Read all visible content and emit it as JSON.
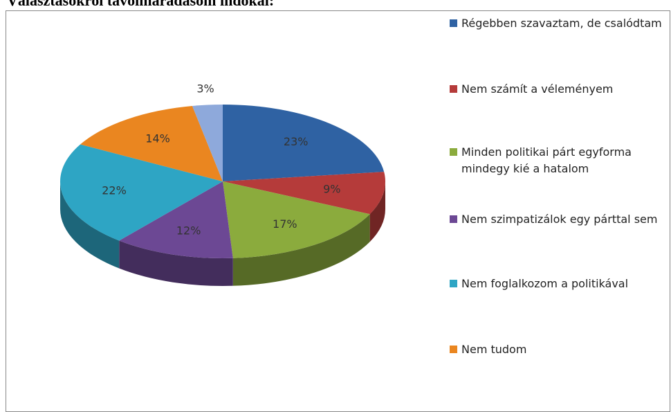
{
  "chart_data": {
    "type": "pie",
    "title": "Választásokról távolmaradásom indokai:",
    "categories": [
      "Régebben szavaztam, de csalódtam",
      "Nem számít a véleményem",
      "Minden politikai párt egyforma mindegy kié a hatalom",
      "Nem szimpatizálok egy párttal sem",
      "Nem foglalkozom a politikával",
      "Nem tudom",
      null
    ],
    "values": [
      23,
      9,
      17,
      12,
      22,
      14,
      3
    ],
    "value_labels": [
      "23%",
      "9%",
      "17%",
      "12%",
      "22%",
      "14%",
      "3%"
    ],
    "colors": [
      "#2f62a3",
      "#b53b3a",
      "#8bab3d",
      "#6c4894",
      "#2ea5c4",
      "#ea8620",
      "#8ea9db"
    ],
    "legend": "right"
  }
}
